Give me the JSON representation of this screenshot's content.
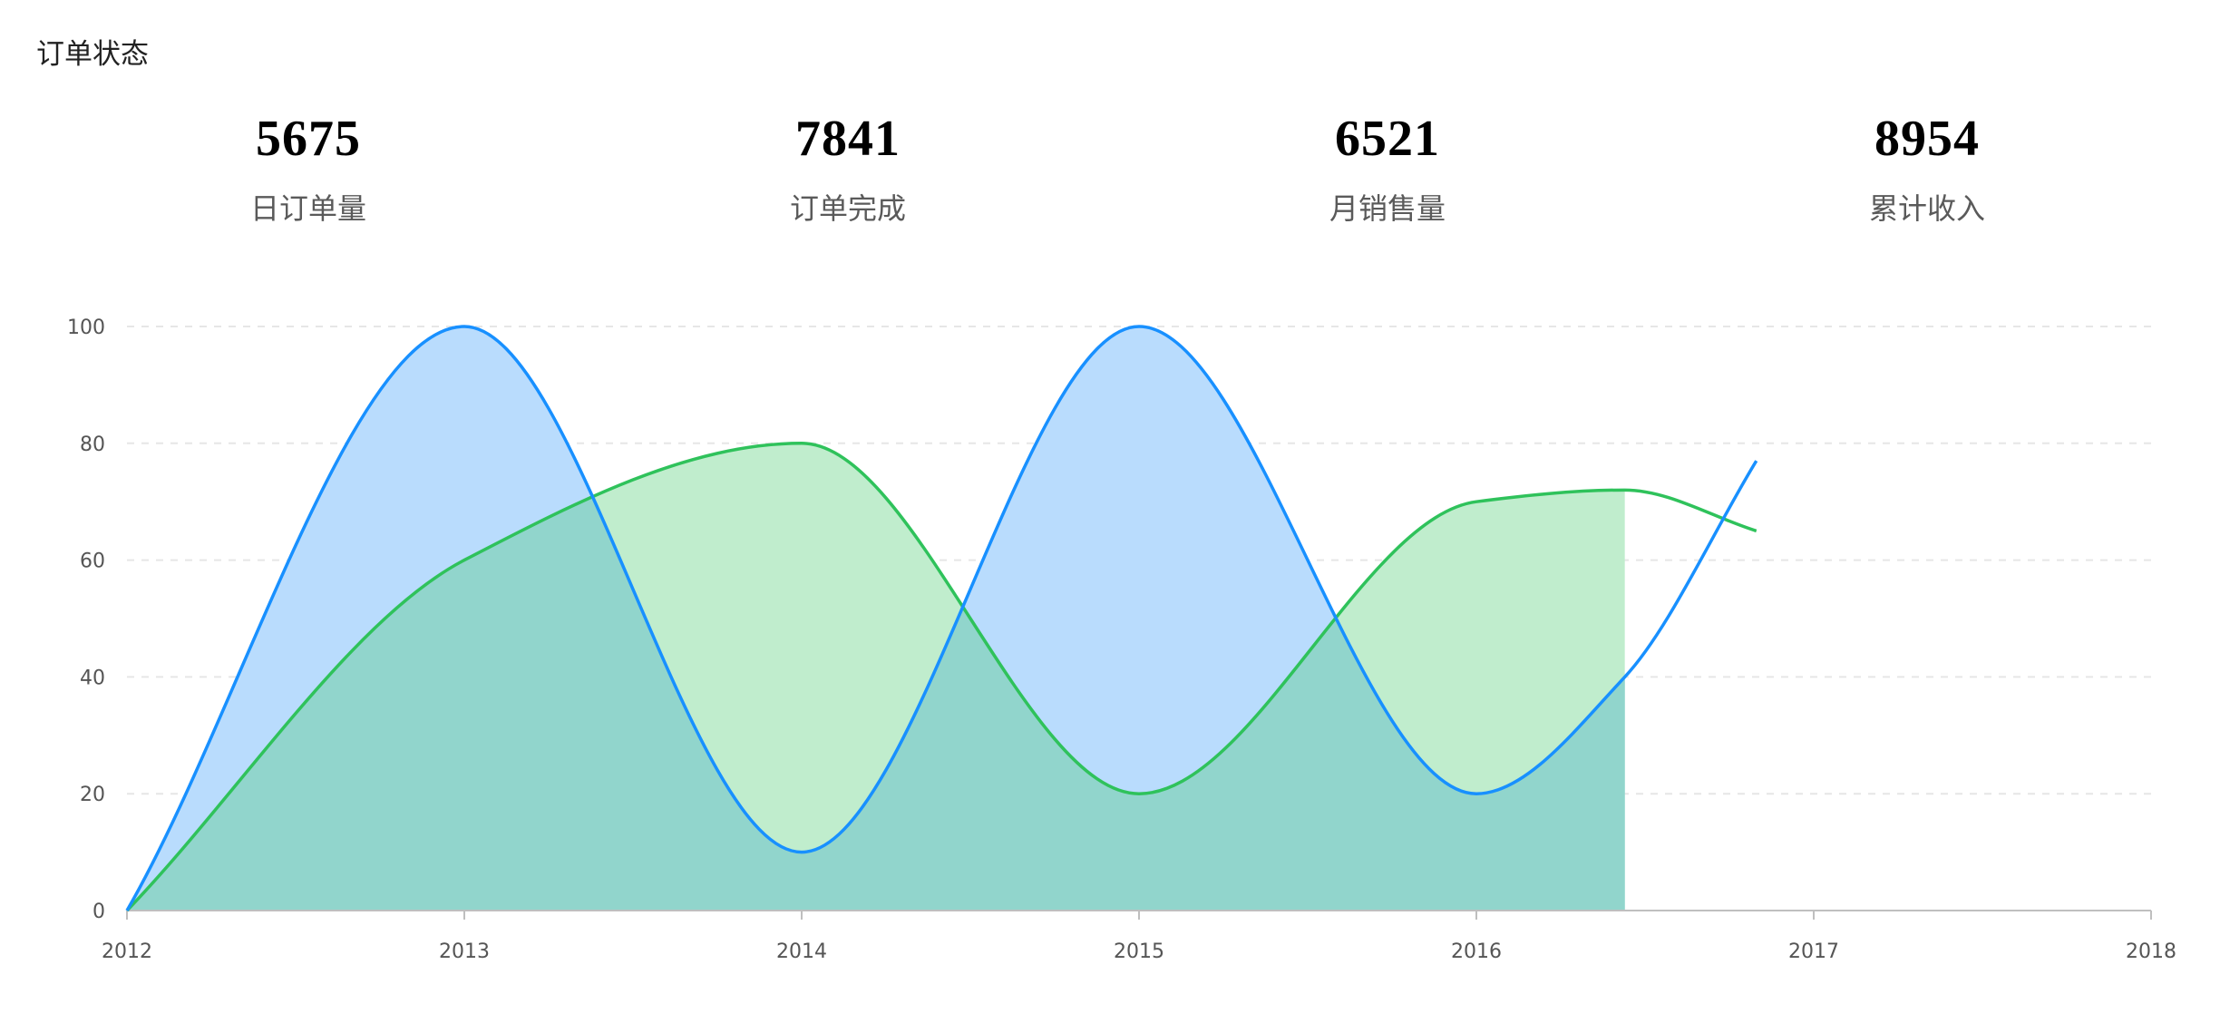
{
  "panel": {
    "title": "订单状态"
  },
  "stats": [
    {
      "value": "5675",
      "label": "日订单量"
    },
    {
      "value": "7841",
      "label": "订单完成"
    },
    {
      "value": "6521",
      "label": "月销售量"
    },
    {
      "value": "8954",
      "label": "累计收入"
    }
  ],
  "chart_data": {
    "type": "area",
    "title": "",
    "xlabel": "",
    "ylabel": "",
    "x": [
      2012,
      2013,
      2014,
      2015,
      2016,
      2016.44,
      2016.83
    ],
    "xlim": [
      2012,
      2018
    ],
    "ylim": [
      0,
      100
    ],
    "x_ticks": [
      "2012",
      "2013",
      "2014",
      "2015",
      "2016",
      "2017",
      "2018"
    ],
    "y_ticks": [
      "0",
      "20",
      "40",
      "60",
      "80",
      "100"
    ],
    "grid": true,
    "legend": "none",
    "series": [
      {
        "values": [
          0,
          100,
          10,
          100,
          20,
          40,
          77
        ],
        "color": "#1890ff",
        "fill": "#b9dcfd"
      },
      {
        "values": [
          0,
          60,
          80,
          20,
          70,
          72,
          65
        ],
        "color": "#2fc25b",
        "fill": "#c0edcd"
      }
    ],
    "overlap_fill": "#91d5cc",
    "fill_end_x": 2016.44
  }
}
